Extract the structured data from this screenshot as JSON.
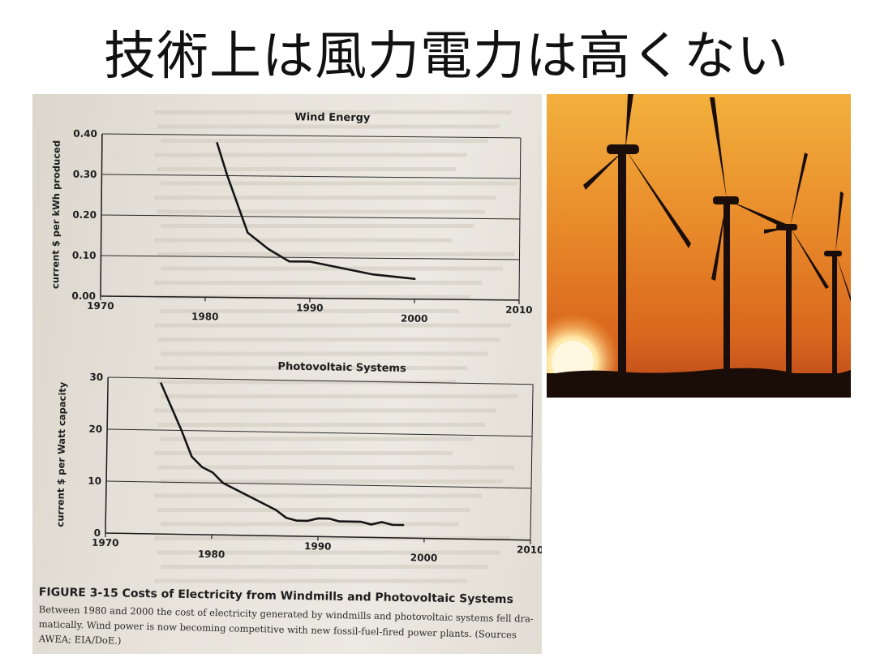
{
  "slide": {
    "title": "技術上は風力電力は高くない"
  },
  "figure": {
    "caption": "FIGURE 3-15 Costs of Electricity from Windmills and Photovoltaic Systems",
    "body_lines": [
      "Between 1980 and 2000 the cost of electricity generated by windmills and photovoltaic systems fell dra-",
      "matically. Wind power is now becoming competitive with new fossil-fuel-fired power plants. (Sources",
      "AWEA; EIA/DoE.)"
    ]
  },
  "chart_data": [
    {
      "type": "line",
      "title": "Wind Energy",
      "xlabel": "",
      "ylabel": "current $ per kWh produced",
      "xlim": [
        1970,
        2010
      ],
      "ylim": [
        0,
        0.4
      ],
      "x_ticks": [
        "1970",
        "1980",
        "1990",
        "2000",
        "2010"
      ],
      "y_ticks": [
        "0.00",
        "0.10",
        "0.20",
        "0.30",
        "0.40"
      ],
      "grid": true,
      "series": [
        {
          "x": [
            1981,
            1982,
            1983,
            1984,
            1985,
            1986,
            1988,
            1990,
            1992,
            1994,
            1996,
            1998,
            2000
          ],
          "y": [
            0.38,
            0.3,
            0.23,
            0.16,
            0.14,
            0.12,
            0.09,
            0.09,
            0.08,
            0.07,
            0.06,
            0.055,
            0.05
          ]
        }
      ]
    },
    {
      "type": "line",
      "title": "Photovoltaic Systems",
      "xlabel": "",
      "ylabel": "current $ per Watt capacity",
      "xlim": [
        1970,
        2010
      ],
      "ylim": [
        0,
        30
      ],
      "x_ticks": [
        "1970",
        "1980",
        "1990",
        "2000",
        "2010"
      ],
      "y_ticks": [
        "0",
        "10",
        "20",
        "30"
      ],
      "grid": true,
      "series": [
        {
          "x": [
            1975,
            1977,
            1978,
            1979,
            1980,
            1981,
            1983,
            1985,
            1986,
            1987,
            1988,
            1989,
            1990,
            1991,
            1992,
            1993,
            1994,
            1995,
            1996,
            1997,
            1998
          ],
          "y": [
            29,
            20,
            15,
            13,
            12,
            10,
            8,
            6,
            5,
            3.5,
            3,
            3,
            3.5,
            3.5,
            3,
            3,
            3,
            2.5,
            3,
            2.5,
            2.5
          ]
        }
      ]
    }
  ]
}
